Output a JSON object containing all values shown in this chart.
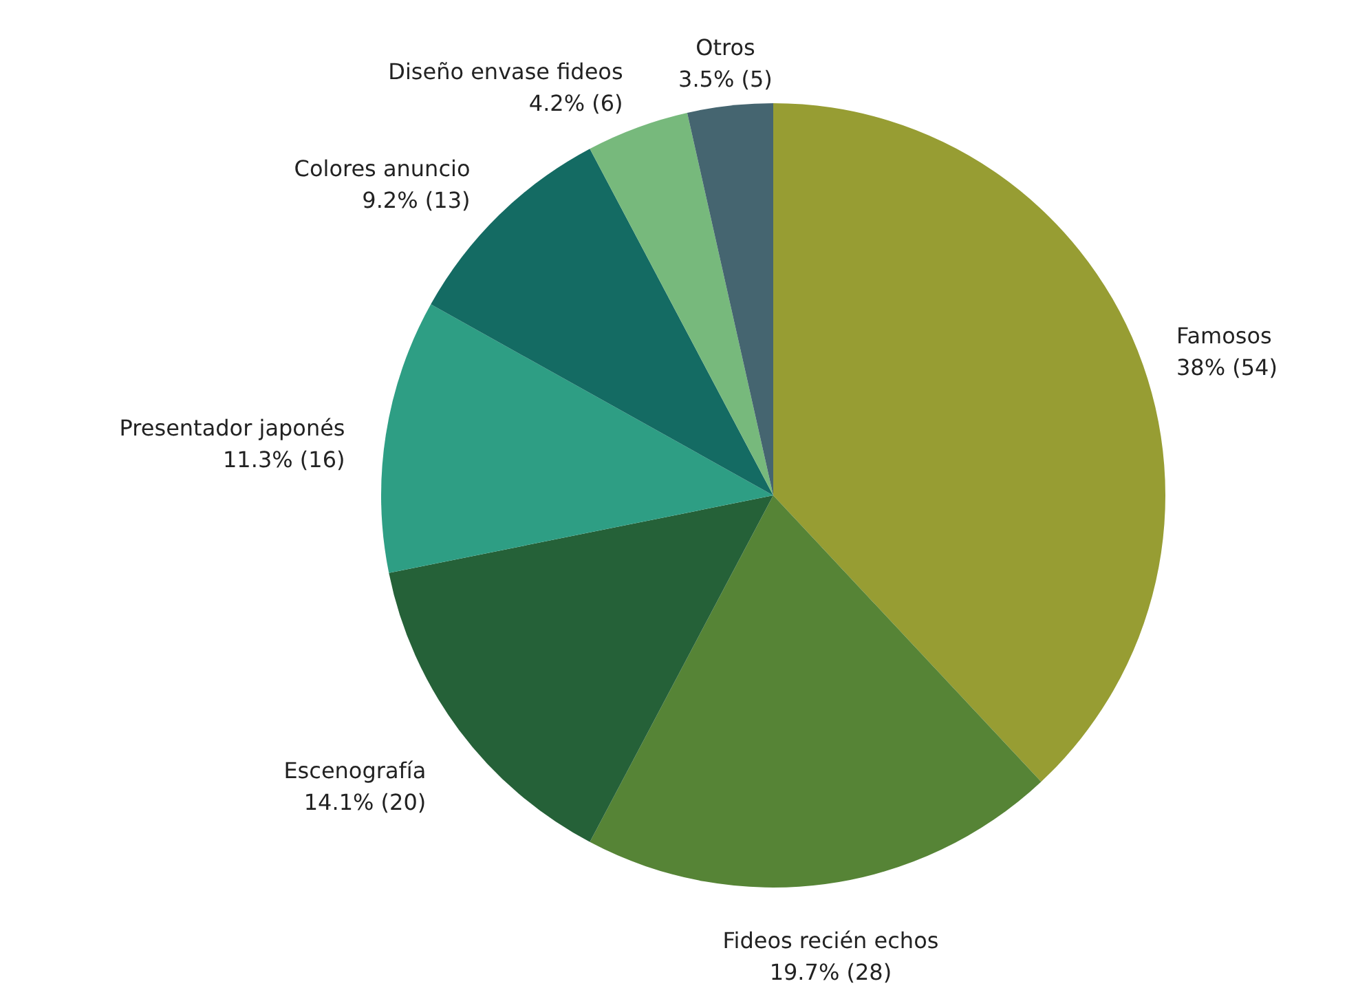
{
  "chart_data": {
    "type": "pie",
    "categories": [
      "Famosos",
      "Fideos recién echos",
      "Escenografía",
      "Presentador japonés",
      "Colores anuncio",
      "Diseño envase fideos",
      "Otros"
    ],
    "values": [
      54,
      28,
      20,
      16,
      13,
      6,
      5
    ],
    "value_labels": [
      "38% (54)",
      "19.7% (28)",
      "14.1% (20)",
      "11.3% (16)",
      "9.2% (13)",
      "4.2% (6)",
      "3.5% (5)"
    ],
    "colors": [
      "#979d33",
      "#568436",
      "#256138",
      "#2e9e84",
      "#146b63",
      "#77b97c",
      "#456570"
    ]
  }
}
